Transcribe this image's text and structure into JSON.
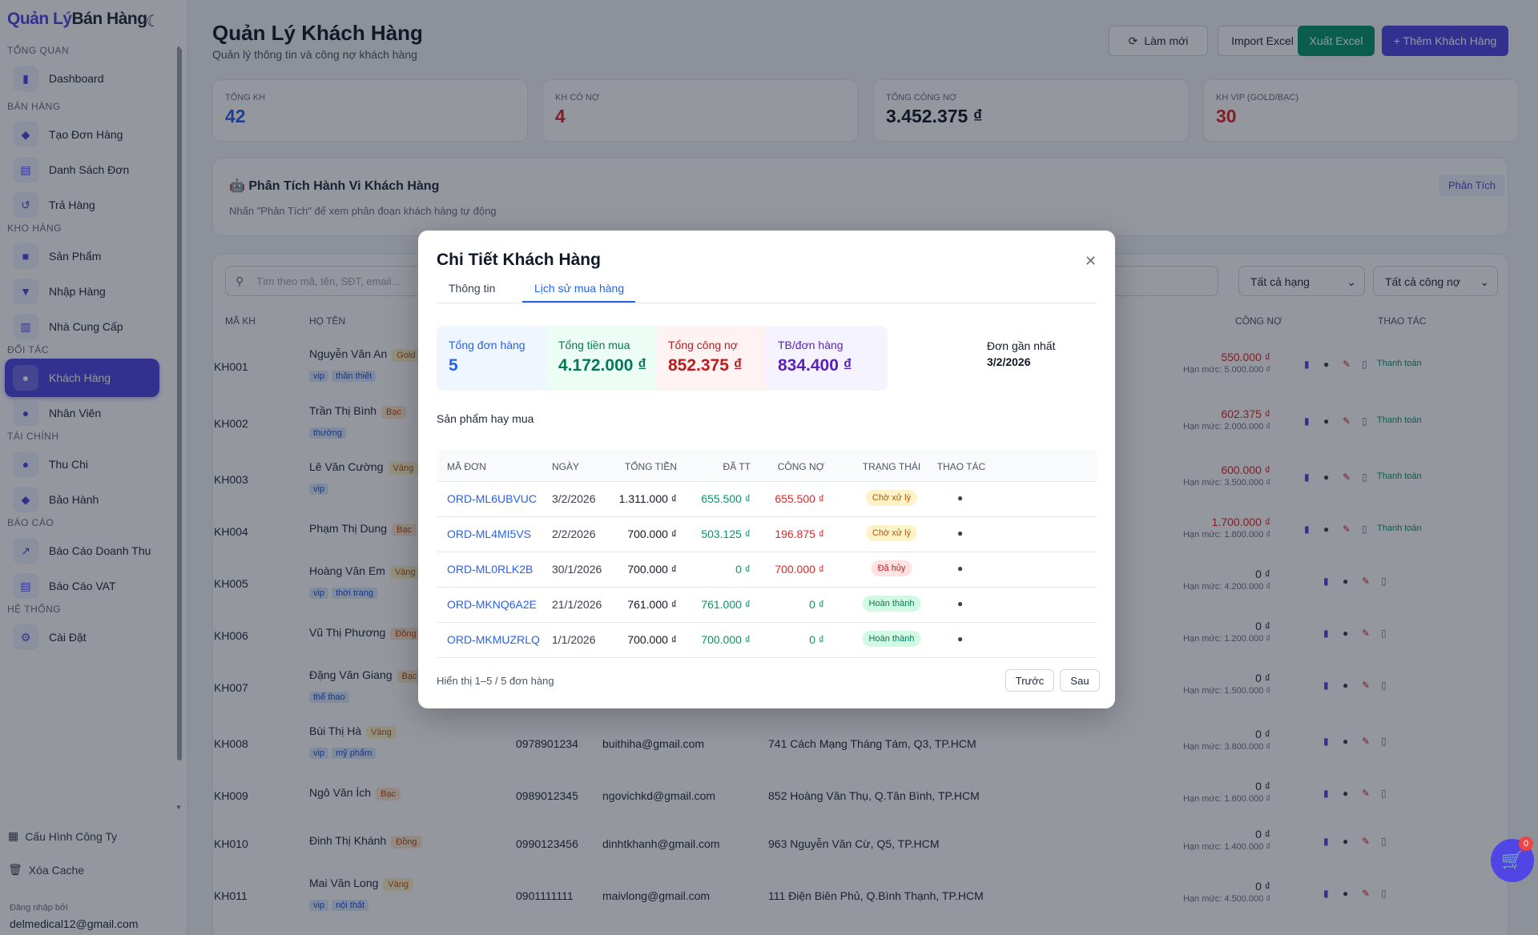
{
  "sidebar": {
    "logo_a": "Quản Lý",
    "logo_b": "Bán Hàng",
    "sections": [
      {
        "label": "TỔNG QUAN",
        "items": [
          {
            "label": "Dashboard",
            "icon": "chart-icon"
          }
        ]
      },
      {
        "label": "BÁN HÀNG",
        "items": [
          {
            "label": "Tạo Đơn Hàng",
            "icon": "cart-icon"
          },
          {
            "label": "Danh Sách Đơn",
            "icon": "clipboard-icon"
          },
          {
            "label": "Trả Hàng",
            "icon": "return-icon"
          }
        ]
      },
      {
        "label": "KHO HÀNG",
        "items": [
          {
            "label": "Sản Phẩm",
            "icon": "box-icon"
          },
          {
            "label": "Nhập Hàng",
            "icon": "inbox-icon"
          },
          {
            "label": "Nhà Cung Cấp",
            "icon": "factory-icon"
          }
        ]
      },
      {
        "label": "ĐỐI TÁC",
        "items": [
          {
            "label": "Khách Hàng",
            "icon": "users-icon",
            "active": true
          },
          {
            "label": "Nhân Viên",
            "icon": "user-icon"
          }
        ]
      },
      {
        "label": "TÀI CHÍNH",
        "items": [
          {
            "label": "Thu Chi",
            "icon": "money-bag-icon"
          },
          {
            "label": "Bảo Hành",
            "icon": "shield-icon"
          }
        ]
      },
      {
        "label": "BÁO CÁO",
        "items": [
          {
            "label": "Báo Cáo Doanh Thu",
            "icon": "trend-icon"
          },
          {
            "label": "Báo Cáo VAT",
            "icon": "receipt-icon"
          }
        ]
      },
      {
        "label": "HỆ THỐNG",
        "items": [
          {
            "label": "Cài Đặt",
            "icon": "gear-icon"
          }
        ]
      }
    ],
    "company_config": "Cấu Hình Công Ty",
    "clear_cache": "Xóa Cache",
    "login_label": "Đăng nhập bởi",
    "login_email": "delmedical12@gmail.com"
  },
  "header": {
    "title": "Quản Lý Khách Hàng",
    "subtitle": "Quản lý thông tin và công nợ khách hàng",
    "refresh": "Làm mới",
    "import": "Import Excel",
    "export": "Xuất Excel",
    "add": "+ Thêm Khách Hàng"
  },
  "stats": [
    {
      "label": "TỔNG KH",
      "value": "42",
      "color": "#2563eb"
    },
    {
      "label": "KH CÓ NỢ",
      "value": "4",
      "color": "#dc2626"
    },
    {
      "label": "TỔNG CÔNG NỢ",
      "value": "3.452.375 ₫",
      "color": "#111827"
    },
    {
      "label": "KH VIP (GOLD/BẠC)",
      "value": "30",
      "color": "#dc2626"
    }
  ],
  "analysis": {
    "title": "Phân Tích Hành Vi Khách Hàng",
    "hint": "Nhấn \"Phân Tích\" để xem phân đoạn khách hàng tự động",
    "button": "Phân Tích"
  },
  "filters": {
    "search_placeholder": "Tìm theo mã, tên, SĐT, email...",
    "rank": "Tất cả hạng",
    "debt": "Tất cả công nợ"
  },
  "table": {
    "headers": {
      "code": "MÃ KH",
      "name": "HỌ TÊN",
      "debt": "CÔNG NỢ",
      "actions": "THAO TÁC"
    },
    "pay_label": "Thanh toán",
    "limit_prefix": "Hạn mức:",
    "rows": [
      {
        "code": "KH001",
        "name": "Nguyễn Văn An",
        "rank": "Gold",
        "tags": [
          "vip",
          "thân thiết"
        ],
        "phone": "",
        "email": "",
        "address": "",
        "debt": "550.000 ₫",
        "limit": "5.000.000 ₫",
        "has_debt": true
      },
      {
        "code": "KH002",
        "name": "Trần Thị Bình",
        "rank": "Bạc",
        "tags": [
          "thường"
        ],
        "phone": "",
        "email": "",
        "address": "",
        "debt": "602.375 ₫",
        "limit": "2.000.000 ₫",
        "has_debt": true
      },
      {
        "code": "KH003",
        "name": "Lê Văn Cường",
        "rank": "Vàng",
        "tags": [
          "vip"
        ],
        "phone": "",
        "email": "",
        "address": "",
        "debt": "600.000 ₫",
        "limit": "3.500.000 ₫",
        "has_debt": true
      },
      {
        "code": "KH004",
        "name": "Phạm Thị Dung",
        "rank": "Bạc",
        "tags": [],
        "phone": "",
        "email": "",
        "address": "",
        "debt": "1.700.000 ₫",
        "limit": "1.800.000 ₫",
        "has_debt": true
      },
      {
        "code": "KH005",
        "name": "Hoàng Văn Em",
        "rank": "Vàng",
        "tags": [
          "vip",
          "thời trang"
        ],
        "phone": "",
        "email": "",
        "address": "",
        "debt": "0 ₫",
        "limit": "4.200.000 ₫",
        "has_debt": false
      },
      {
        "code": "KH006",
        "name": "Vũ Thị Phương",
        "rank": "Đồng",
        "tags": [],
        "phone": "",
        "email": "",
        "address": "",
        "debt": "0 ₫",
        "limit": "1.200.000 ₫",
        "has_debt": false
      },
      {
        "code": "KH007",
        "name": "Đặng Văn Giang",
        "rank": "Bạc",
        "tags": [
          "thể thao"
        ],
        "phone": "",
        "email": "",
        "address": "",
        "debt": "0 ₫",
        "limit": "1.500.000 ₫",
        "has_debt": false
      },
      {
        "code": "KH008",
        "name": "Bùi Thị Hà",
        "rank": "Vàng",
        "tags": [
          "vip",
          "mỹ phẩm"
        ],
        "phone": "0978901234",
        "email": "buithiha@gmail.com",
        "address": "741 Cách Mạng Tháng Tám, Q3, TP.HCM",
        "debt": "0 ₫",
        "limit": "3.800.000 ₫",
        "has_debt": false
      },
      {
        "code": "KH009",
        "name": "Ngô Văn Ích",
        "rank": "Bạc",
        "tags": [],
        "phone": "0989012345",
        "email": "ngovichkd@gmail.com",
        "address": "852 Hoàng Văn Thụ, Q.Tân Bình, TP.HCM",
        "debt": "0 ₫",
        "limit": "1.600.000 ₫",
        "has_debt": false
      },
      {
        "code": "KH010",
        "name": "Đinh Thị Khánh",
        "rank": "Đồng",
        "tags": [],
        "phone": "0990123456",
        "email": "dinhtkhanh@gmail.com",
        "address": "963 Nguyễn Văn Cừ, Q5, TP.HCM",
        "debt": "0 ₫",
        "limit": "1.400.000 ₫",
        "has_debt": false
      },
      {
        "code": "KH011",
        "name": "Mai Văn Long",
        "rank": "Vàng",
        "tags": [
          "vip",
          "nội thất"
        ],
        "phone": "0901111111",
        "email": "maivlong@gmail.com",
        "address": "111 Điện Biên Phủ, Q.Bình Thạnh, TP.HCM",
        "debt": "0 ₫",
        "limit": "4.500.000 ₫",
        "has_debt": false
      }
    ]
  },
  "modal": {
    "title": "Chi Tiết Khách Hàng",
    "tabs": [
      "Thông tin",
      "Lịch sử mua hàng"
    ],
    "cards": [
      {
        "label": "Tổng đơn hàng",
        "value": "5",
        "bg": "#eff6ff",
        "fg": "#2563eb"
      },
      {
        "label": "Tổng tiền mua",
        "value": "4.172.000 ₫",
        "bg": "#ecfdf5",
        "fg": "#047857"
      },
      {
        "label": "Tổng công nợ",
        "value": "852.375 ₫",
        "bg": "#fef2f2",
        "fg": "#b91c1c"
      },
      {
        "label": "TB/đơn hàng",
        "value": "834.400 ₫",
        "bg": "#f5f3ff",
        "fg": "#5b21b6"
      }
    ],
    "recent_label": "Đơn gần nhất",
    "recent_value": "3/2/2026",
    "products_label": "Sản phẩm hay mua",
    "headers": [
      "MÃ ĐƠN",
      "NGÀY",
      "TỔNG TIỀN",
      "ĐÃ TT",
      "CÔNG NỢ",
      "TRẠNG THÁI",
      "THAO TÁC"
    ],
    "orders": [
      {
        "code": "ORD-ML6UBVUC",
        "date": "3/2/2026",
        "total": "1.311.000 ₫",
        "paid": "655.500 ₫",
        "debt": "655.500 ₫",
        "status": "Chờ xử lý",
        "status_type": "pending"
      },
      {
        "code": "ORD-ML4MI5VS",
        "date": "2/2/2026",
        "total": "700.000 ₫",
        "paid": "503.125 ₫",
        "debt": "196.875 ₫",
        "status": "Chờ xử lý",
        "status_type": "pending"
      },
      {
        "code": "ORD-ML0RLK2B",
        "date": "30/1/2026",
        "total": "700.000 ₫",
        "paid": "0 ₫",
        "debt": "700.000 ₫",
        "status": "Đã hủy",
        "status_type": "cancel"
      },
      {
        "code": "ORD-MKNQ6A2E",
        "date": "21/1/2026",
        "total": "761.000 ₫",
        "paid": "761.000 ₫",
        "debt": "0 ₫",
        "status": "Hoàn thành",
        "status_type": "done"
      },
      {
        "code": "ORD-MKMUZRLQ",
        "date": "1/1/2026",
        "total": "700.000 ₫",
        "paid": "700.000 ₫",
        "debt": "0 ₫",
        "status": "Hoàn thành",
        "status_type": "done"
      }
    ],
    "pagination_text": "Hiển thị 1–5 / 5 đơn hàng",
    "prev": "Trước",
    "next": "Sau"
  },
  "cart_count": "0"
}
